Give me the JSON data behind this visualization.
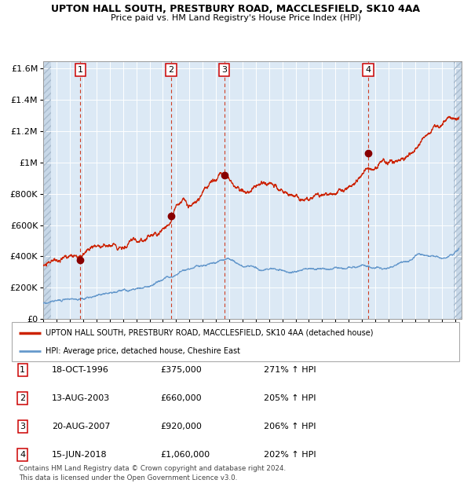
{
  "title1": "UPTON HALL SOUTH, PRESTBURY ROAD, MACCLESFIELD, SK10 4AA",
  "title2": "Price paid vs. HM Land Registry's House Price Index (HPI)",
  "ylim": [
    0,
    1650000
  ],
  "xlim_start": 1994.0,
  "xlim_end": 2025.5,
  "plot_bg_color": "#dce9f5",
  "sale_dates": [
    1996.79,
    2003.62,
    2007.63,
    2018.46
  ],
  "sale_prices": [
    375000,
    660000,
    920000,
    1060000
  ],
  "sale_labels": [
    "1",
    "2",
    "3",
    "4"
  ],
  "legend_line1": "UPTON HALL SOUTH, PRESTBURY ROAD, MACCLESFIELD, SK10 4AA (detached house)",
  "legend_line2": "HPI: Average price, detached house, Cheshire East",
  "table_entries": [
    [
      "1",
      "18-OCT-1996",
      "£375,000",
      "271% ↑ HPI"
    ],
    [
      "2",
      "13-AUG-2003",
      "£660,000",
      "205% ↑ HPI"
    ],
    [
      "3",
      "20-AUG-2007",
      "£920,000",
      "206% ↑ HPI"
    ],
    [
      "4",
      "15-JUN-2018",
      "£1,060,000",
      "202% ↑ HPI"
    ]
  ],
  "footnote": "Contains HM Land Registry data © Crown copyright and database right 2024.\nThis data is licensed under the Open Government Licence v3.0.",
  "red_line_color": "#cc2200",
  "blue_line_color": "#6699cc",
  "sale_marker_color": "#880000",
  "dashed_line_color": "#cc2200"
}
